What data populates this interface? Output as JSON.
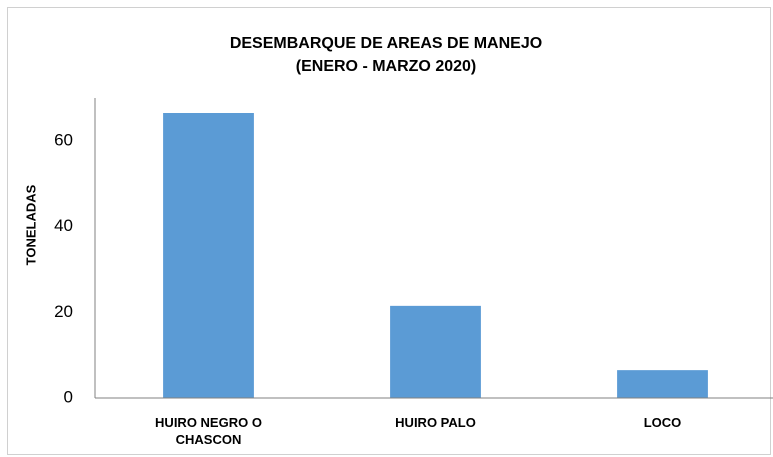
{
  "chart_data": {
    "type": "bar",
    "title": [
      "DESEMBARQUE DE AREAS DE MANEJO",
      "(ENERO - MARZO 2020)"
    ],
    "y_label": "TONELADAS",
    "categories": [
      "HUIRO NEGRO O CHASCON",
      "HUIRO PALO",
      "LOCO"
    ],
    "values": [
      66.5,
      21.5,
      6.5
    ],
    "color": "#5b9bd5",
    "ylim": [
      0,
      70
    ],
    "yticks": [
      0,
      20,
      40,
      60
    ],
    "grid": false
  }
}
